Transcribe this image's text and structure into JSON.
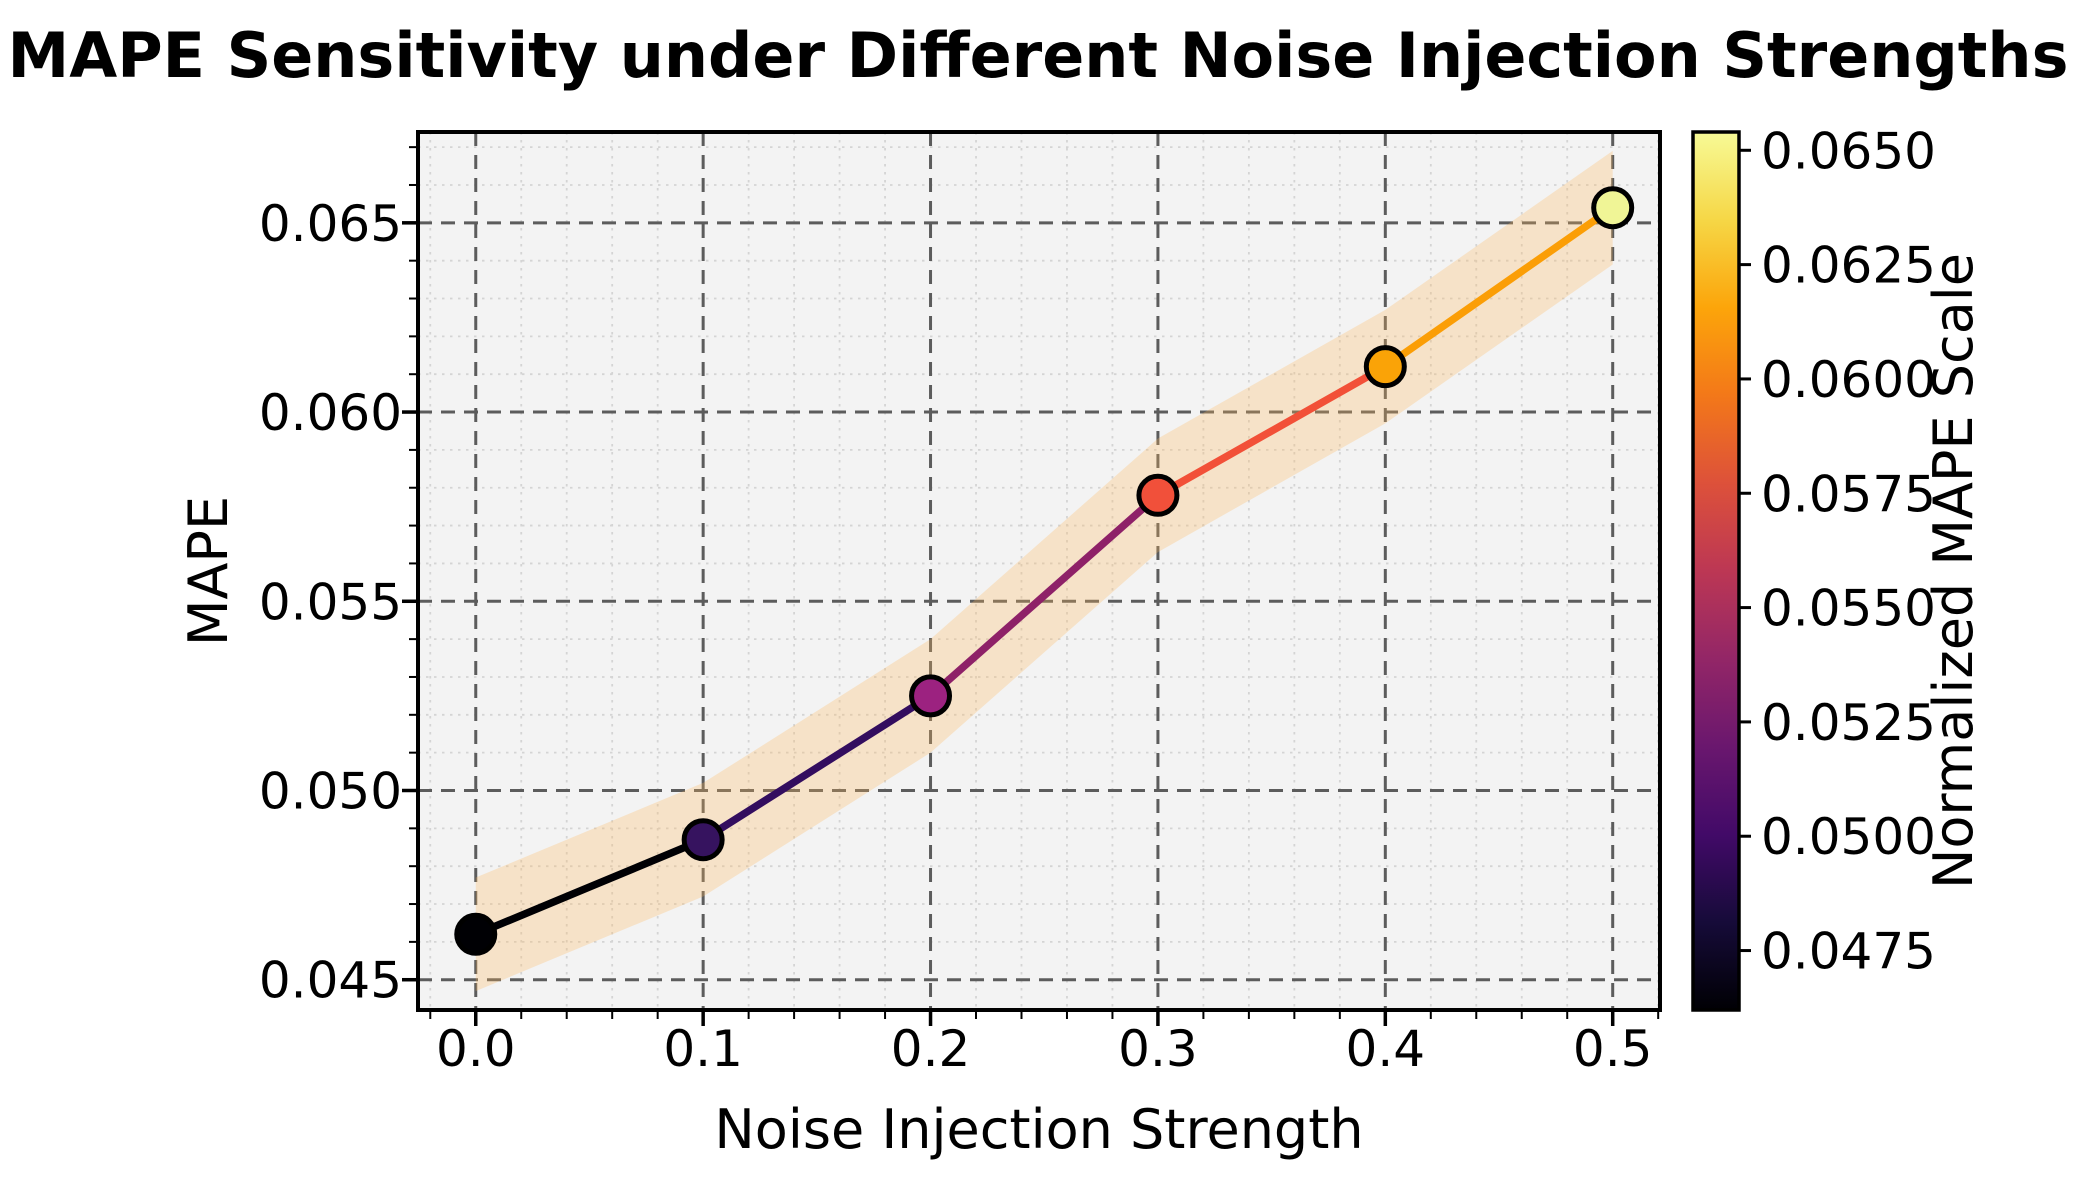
{
  "chart_data": {
    "type": "line",
    "title": "MAPE Sensitivity under Different Noise Injection Strengths",
    "xlabel": "Noise Injection Strength",
    "ylabel": "MAPE",
    "x": [
      0.0,
      0.1,
      0.2,
      0.3,
      0.4,
      0.5
    ],
    "y": [
      0.0462,
      0.0487,
      0.0525,
      0.0578,
      0.0612,
      0.0654
    ],
    "band_half_width": 0.0015,
    "xlim": [
      -0.0254,
      0.5208
    ],
    "ylim": [
      0.0442,
      0.0674
    ],
    "x_ticks": {
      "values": [
        0.0,
        0.1,
        0.2,
        0.3,
        0.4,
        0.5
      ],
      "labels": [
        "0.0",
        "0.1",
        "0.2",
        "0.3",
        "0.4",
        "0.5"
      ]
    },
    "y_ticks": {
      "values": [
        0.045,
        0.05,
        0.055,
        0.06,
        0.065
      ],
      "labels": [
        "0.045",
        "0.050",
        "0.055",
        "0.060",
        "0.065"
      ]
    },
    "x_minor_step": 0.02,
    "y_minor_step": 0.001,
    "grid": {
      "major": true,
      "minor": true
    },
    "point_colors": [
      "#000004",
      "#36135f",
      "#9c2280",
      "#f1503a",
      "#faa307",
      "#f0f596"
    ],
    "segment_colors": [
      "#000004",
      "#330d5f",
      "#8e2168",
      "#f25038",
      "#fb9e06"
    ],
    "colorbar": {
      "label": "Normalized MAPE Scale",
      "vmin": 0.0462,
      "vmax": 0.0654,
      "ticks": {
        "values": [
          0.0475,
          0.05,
          0.0525,
          0.055,
          0.0575,
          0.06,
          0.0625,
          0.065
        ],
        "labels": [
          "0.0475",
          "0.0500",
          "0.0525",
          "0.0550",
          "0.0575",
          "0.0600",
          "0.0625",
          "0.0650"
        ]
      },
      "gradient_stops": [
        [
          0.0,
          "#000004"
        ],
        [
          0.1,
          "#160b39"
        ],
        [
          0.2,
          "#420a68"
        ],
        [
          0.3,
          "#6a176e"
        ],
        [
          0.4,
          "#932667"
        ],
        [
          0.5,
          "#bc3754"
        ],
        [
          0.6,
          "#dd513a"
        ],
        [
          0.7,
          "#f37819"
        ],
        [
          0.8,
          "#fca50a"
        ],
        [
          0.9,
          "#f6d746"
        ],
        [
          1.0,
          "#f7fa96"
        ]
      ]
    },
    "colors": {
      "figure_bg": "#ffffff",
      "axes_bg": "#f3f3f3",
      "major_grid": "#5c5c5c",
      "minor_grid": "#d4d4d4",
      "spine": "#000000",
      "band_fill": "#ffb659",
      "band_opacity": 0.28,
      "marker_edge": "#000000"
    },
    "legend": null
  }
}
